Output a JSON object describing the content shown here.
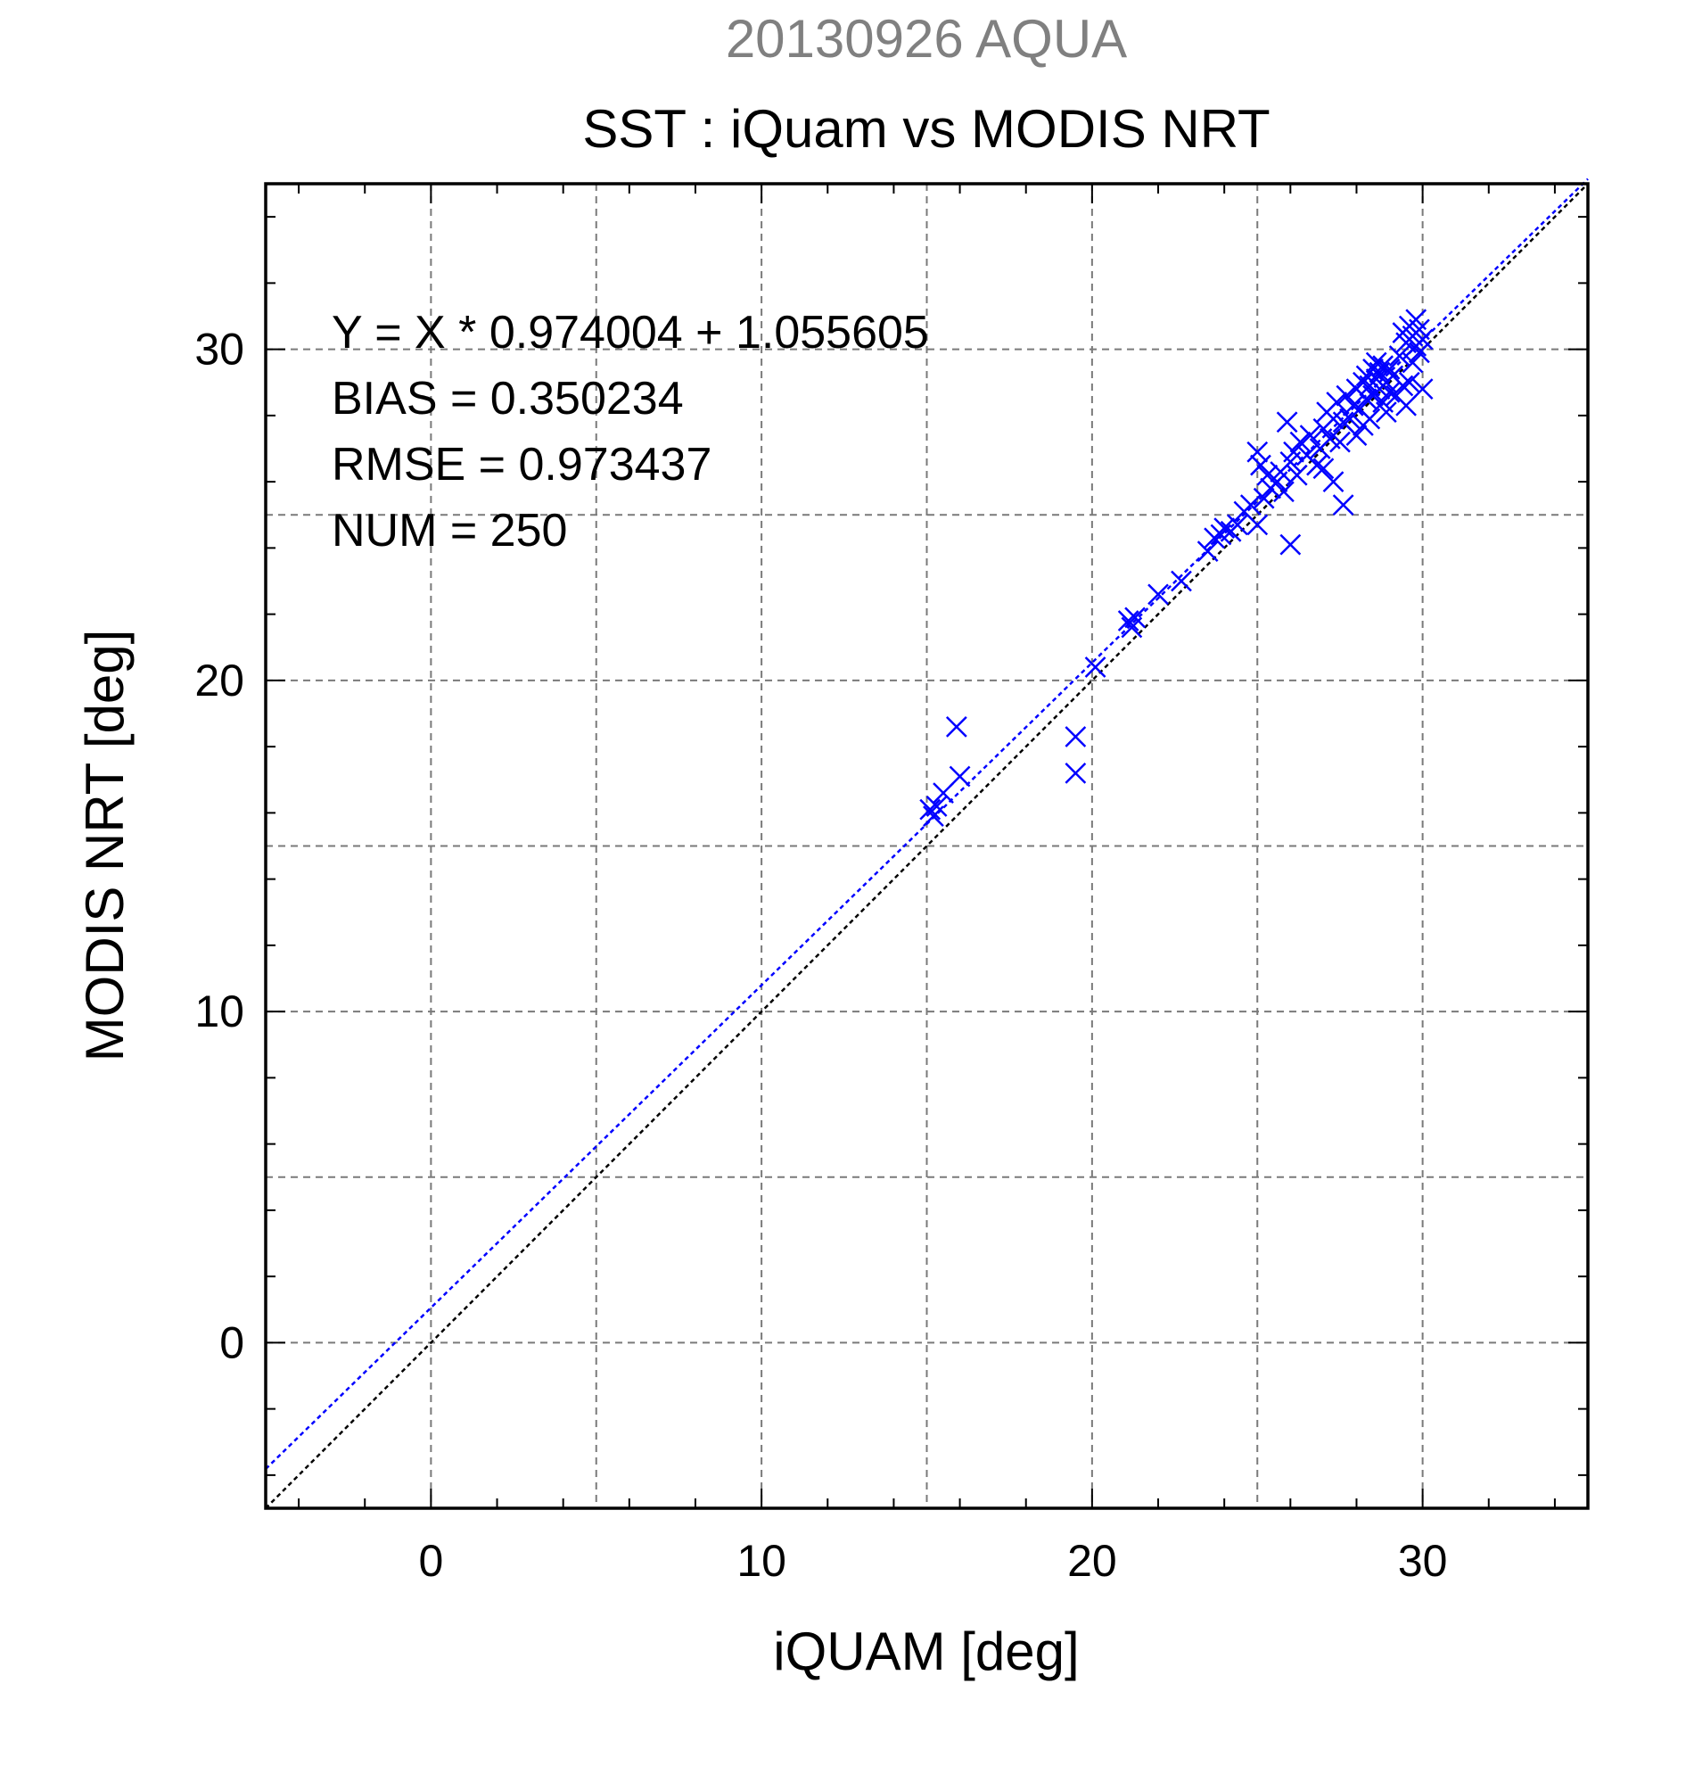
{
  "chart_data": {
    "type": "scatter",
    "title": "SST : iQuam vs MODIS NRT",
    "subtitle": "20130926 AQUA",
    "xlabel": "iQUAM [deg]",
    "ylabel": "MODIS NRT [deg]",
    "xlim": [
      -5,
      35
    ],
    "ylim": [
      -5,
      35
    ],
    "x_ticks": [
      0,
      10,
      20,
      30
    ],
    "y_ticks": [
      0,
      10,
      20,
      30
    ],
    "x_ticks_labels": [
      "0",
      "10",
      "20",
      "30"
    ],
    "y_ticks_labels": [
      "0",
      "10",
      "20",
      "30"
    ],
    "grid": true,
    "grid_step": 5,
    "annotations": [
      "Y = X * 0.974004 + 1.055605",
      "BIAS = 0.350234",
      "RMSE = 0.973437",
      "NUM = 250"
    ],
    "fit": {
      "slope": 0.974004,
      "intercept": 1.055605,
      "color": "#0000ff"
    },
    "identity_color": "#000000",
    "marker": "x",
    "series": [
      {
        "color": "#0000ff",
        "points": [
          [
            15.1,
            16.1
          ],
          [
            15.2,
            15.9
          ],
          [
            15.3,
            16.2
          ],
          [
            15.5,
            16.6
          ],
          [
            16.0,
            17.1
          ],
          [
            15.9,
            18.6
          ],
          [
            19.5,
            18.3
          ],
          [
            19.5,
            17.2
          ],
          [
            20.1,
            20.4
          ],
          [
            21.1,
            21.8
          ],
          [
            21.2,
            21.6
          ],
          [
            21.3,
            21.9
          ],
          [
            22.0,
            22.6
          ],
          [
            22.7,
            23.0
          ],
          [
            23.5,
            23.9
          ],
          [
            23.7,
            24.3
          ],
          [
            23.9,
            24.4
          ],
          [
            24.0,
            24.6
          ],
          [
            24.2,
            24.5
          ],
          [
            24.4,
            24.7
          ],
          [
            24.6,
            25.1
          ],
          [
            24.8,
            25.3
          ],
          [
            25.0,
            24.7
          ],
          [
            25.0,
            26.9
          ],
          [
            25.1,
            26.5
          ],
          [
            25.2,
            25.5
          ],
          [
            25.3,
            26.2
          ],
          [
            25.4,
            25.8
          ],
          [
            25.6,
            26.0
          ],
          [
            25.7,
            26.3
          ],
          [
            25.8,
            25.7
          ],
          [
            25.9,
            27.8
          ],
          [
            26.0,
            26.6
          ],
          [
            26.0,
            24.1
          ],
          [
            26.1,
            26.9
          ],
          [
            26.2,
            26.2
          ],
          [
            26.3,
            27.2
          ],
          [
            26.5,
            26.8
          ],
          [
            26.6,
            27.4
          ],
          [
            26.8,
            26.5
          ],
          [
            26.9,
            27.0
          ],
          [
            27.0,
            27.6
          ],
          [
            27.0,
            26.4
          ],
          [
            27.1,
            28.1
          ],
          [
            27.2,
            27.3
          ],
          [
            27.3,
            27.9
          ],
          [
            27.3,
            26.0
          ],
          [
            27.4,
            28.4
          ],
          [
            27.5,
            27.2
          ],
          [
            27.6,
            27.8
          ],
          [
            27.6,
            25.3
          ],
          [
            27.7,
            28.6
          ],
          [
            27.8,
            27.9
          ],
          [
            27.9,
            28.3
          ],
          [
            28.0,
            27.4
          ],
          [
            28.0,
            28.8
          ],
          [
            28.1,
            28.2
          ],
          [
            28.2,
            29.0
          ],
          [
            28.2,
            27.7
          ],
          [
            28.3,
            28.5
          ],
          [
            28.3,
            29.2
          ],
          [
            28.4,
            28.9
          ],
          [
            28.4,
            27.9
          ],
          [
            28.5,
            29.4
          ],
          [
            28.5,
            28.6
          ],
          [
            28.6,
            29.1
          ],
          [
            28.6,
            29.6
          ],
          [
            28.7,
            28.8
          ],
          [
            28.7,
            29.3
          ],
          [
            28.8,
            28.4
          ],
          [
            28.8,
            29.5
          ],
          [
            28.9,
            29.0
          ],
          [
            28.9,
            28.1
          ],
          [
            29.0,
            29.4
          ],
          [
            29.0,
            28.7
          ],
          [
            29.1,
            29.2
          ],
          [
            29.2,
            28.6
          ],
          [
            29.3,
            29.8
          ],
          [
            29.4,
            30.5
          ],
          [
            29.5,
            30.2
          ],
          [
            29.5,
            28.3
          ],
          [
            29.6,
            30.7
          ],
          [
            29.7,
            30.4
          ],
          [
            29.7,
            29.6
          ],
          [
            29.8,
            30.9
          ],
          [
            29.8,
            30.1
          ],
          [
            29.9,
            30.6
          ],
          [
            29.9,
            29.9
          ],
          [
            30.0,
            30.3
          ],
          [
            30.0,
            28.8
          ],
          [
            29.6,
            29.0
          ],
          [
            29.4,
            28.9
          ]
        ]
      }
    ]
  }
}
